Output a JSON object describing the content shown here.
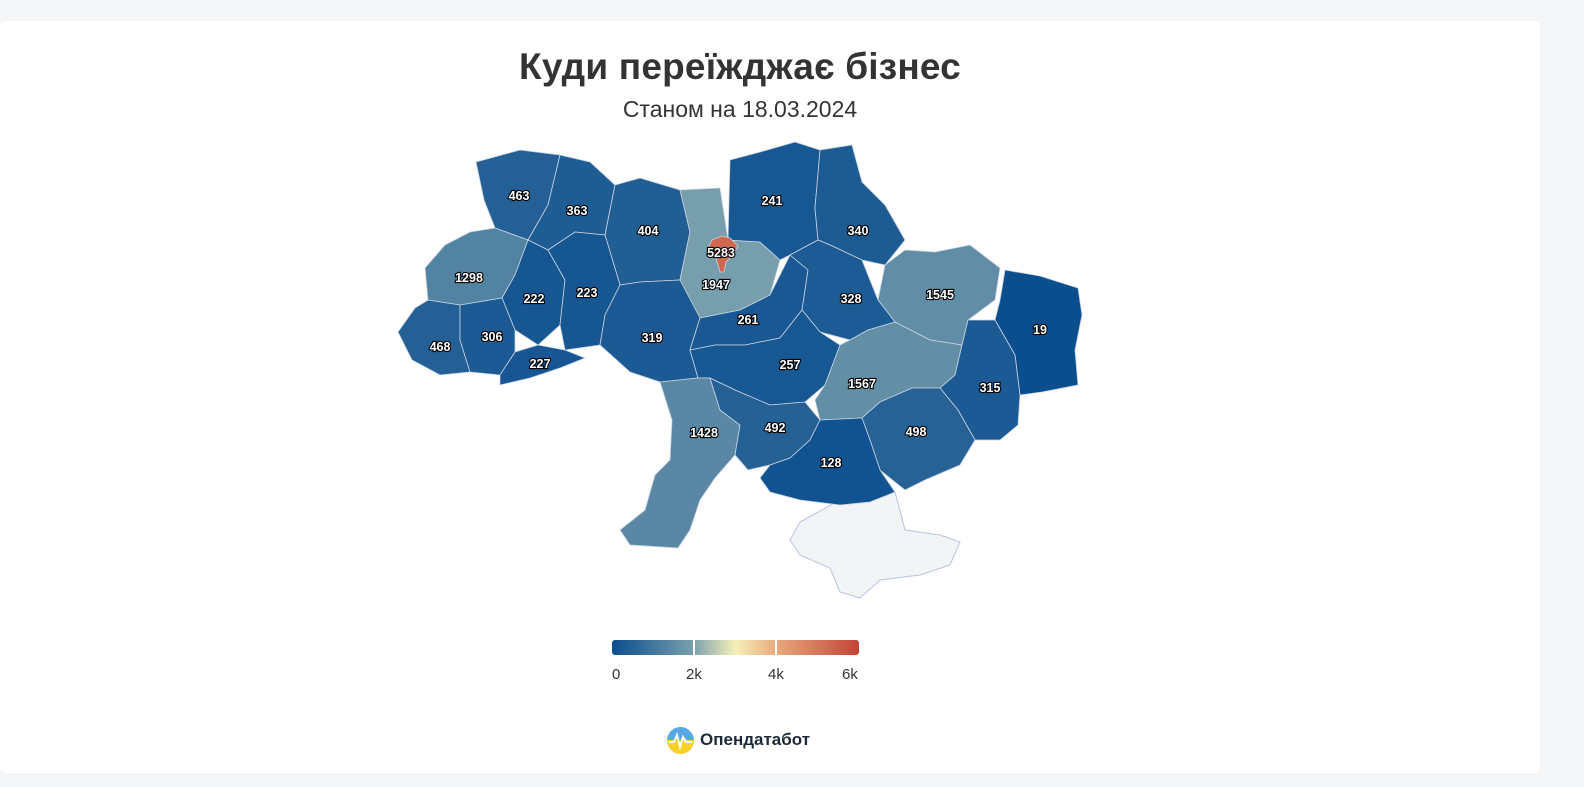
{
  "header": {
    "title": "Куди переїжджає бізнес",
    "subtitle": "Станом на 18.03.2024"
  },
  "colors": {
    "scale": [
      "#0a4d8e",
      "#7aa0ad",
      "#f7f0b8",
      "#e8a87c",
      "#c24335"
    ],
    "no_data": "#f3f4f6"
  },
  "chart_data": {
    "type": "choropleth",
    "regions": [
      {
        "name": "Волинська",
        "value": 463
      },
      {
        "name": "Рівненська",
        "value": 363
      },
      {
        "name": "Житомирська",
        "value": 404
      },
      {
        "name": "Київ",
        "value": 5283
      },
      {
        "name": "Київська",
        "value": 1947
      },
      {
        "name": "Чернігівська",
        "value": 241
      },
      {
        "name": "Сумська",
        "value": 340
      },
      {
        "name": "Харківська",
        "value": 1545
      },
      {
        "name": "Луганська",
        "value": 19
      },
      {
        "name": "Львівська",
        "value": 1298
      },
      {
        "name": "Тернопільська",
        "value": 222
      },
      {
        "name": "Хмельницька",
        "value": 223
      },
      {
        "name": "Закарпатська",
        "value": 468
      },
      {
        "name": "Івано-Франківська",
        "value": 306
      },
      {
        "name": "Чернівецька",
        "value": 227
      },
      {
        "name": "Вінницька",
        "value": 319
      },
      {
        "name": "Черкаська",
        "value": 261
      },
      {
        "name": "Полтавська",
        "value": 328
      },
      {
        "name": "Кіровоградська",
        "value": 257
      },
      {
        "name": "Дніпропетровська",
        "value": 1567
      },
      {
        "name": "Донецька",
        "value": 315
      },
      {
        "name": "Одеська",
        "value": 1428
      },
      {
        "name": "Миколаївська",
        "value": 492
      },
      {
        "name": "Запорізька",
        "value": 498
      },
      {
        "name": "Херсонська",
        "value": 128
      }
    ],
    "no_data_regions": [
      "Крим"
    ],
    "color_axis": {
      "min": 0,
      "max": 6000,
      "ticks": [
        "0",
        "2k",
        "4k",
        "6k"
      ]
    }
  },
  "legend": {
    "ticks": [
      "0",
      "2k",
      "4k",
      "6k"
    ]
  },
  "brand": {
    "name": "Опендатабот"
  }
}
